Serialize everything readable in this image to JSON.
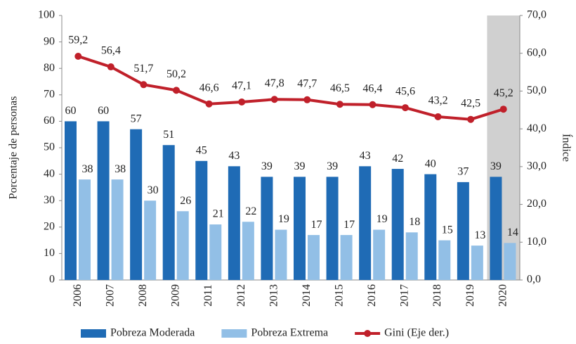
{
  "chart_data": {
    "type": "bar_line",
    "categories": [
      "2006",
      "2007",
      "2008",
      "2009",
      "2011",
      "2012",
      "2013",
      "2014",
      "2015",
      "2016",
      "2017",
      "2018",
      "2019",
      "2020"
    ],
    "series": [
      {
        "name": "Pobreza Moderada",
        "color": "#1f6bb5",
        "values": [
          60,
          60,
          57,
          51,
          45,
          43,
          39,
          39,
          39,
          43,
          42,
          40,
          37,
          39
        ]
      },
      {
        "name": "Pobreza Extrema",
        "color": "#92bfe6",
        "values": [
          38,
          38,
          30,
          26,
          21,
          22,
          19,
          17,
          17,
          19,
          18,
          15,
          13,
          14
        ]
      },
      {
        "name": "Gini (Eje der.)",
        "color": "#c0202a",
        "axis": "y2",
        "values": [
          59.2,
          56.4,
          51.7,
          50.2,
          46.6,
          47.1,
          47.8,
          47.7,
          46.5,
          46.4,
          45.6,
          43.2,
          42.5,
          45.2
        ],
        "value_labels": [
          "59,2",
          "56,4",
          "51,7",
          "50,2",
          "46,6",
          "47,1",
          "47,8",
          "47,7",
          "46,5",
          "46,4",
          "45,6",
          "43,2",
          "42,5",
          "45,2"
        ]
      }
    ],
    "ylabel": "Porcentaje de personas",
    "y2label": "Índice",
    "ylim": [
      0,
      100
    ],
    "yticks": [
      0,
      10,
      20,
      30,
      40,
      50,
      60,
      70,
      80,
      90,
      100
    ],
    "y2lim": [
      0,
      70
    ],
    "y2ticks": [
      {
        "value": 0,
        "label": "0,0"
      },
      {
        "value": 10,
        "label": "10,0"
      },
      {
        "value": 20,
        "label": "20,0"
      },
      {
        "value": 30,
        "label": "30,0"
      },
      {
        "value": 40,
        "label": "40,0"
      },
      {
        "value": 50,
        "label": "50,0"
      },
      {
        "value": 60,
        "label": "60,0"
      },
      {
        "value": 70,
        "label": "70,0"
      }
    ],
    "legend": "bottom"
  }
}
